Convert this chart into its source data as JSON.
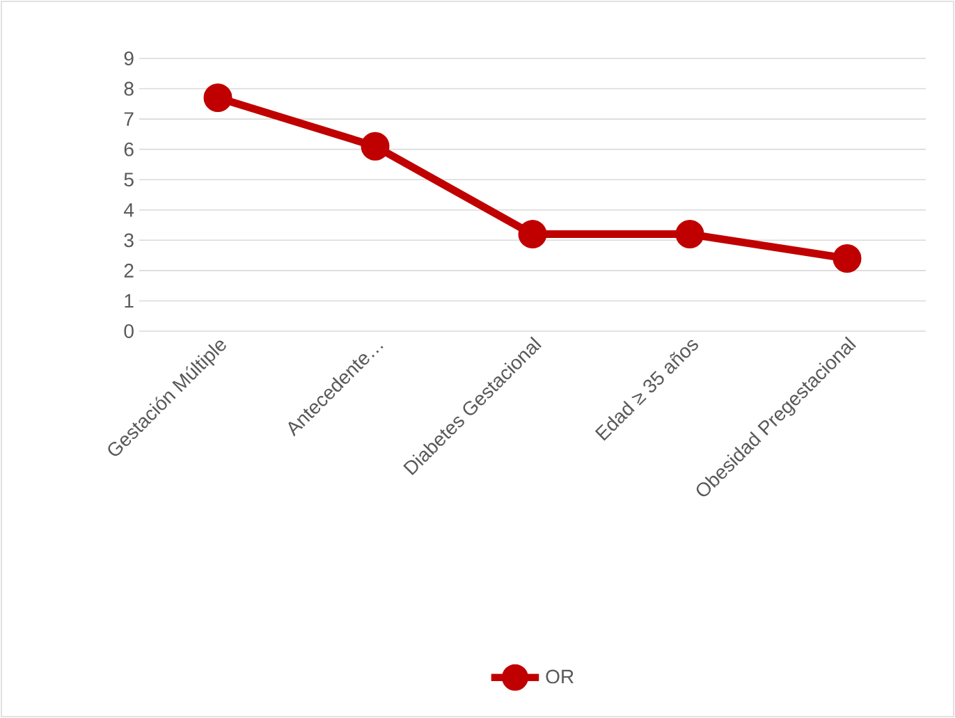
{
  "chart_data": {
    "type": "line",
    "categories": [
      "Gestación Múltiple",
      "Antecedente…",
      "Diabetes Gestacional",
      "Edad ≥ 35 años",
      "Obesidad Pregestacional"
    ],
    "series": [
      {
        "name": "OR",
        "color": "#c00000",
        "values": [
          7.7,
          6.1,
          3.2,
          3.2,
          2.4
        ]
      }
    ],
    "ylim": [
      0,
      9
    ],
    "yticks": [
      0,
      1,
      2,
      3,
      4,
      5,
      6,
      7,
      8,
      9
    ],
    "grid": "y",
    "legend": "bottom",
    "marker": "circle"
  }
}
